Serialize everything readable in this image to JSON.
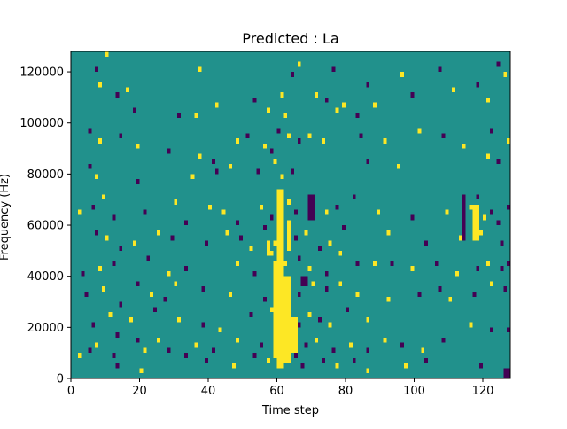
{
  "chart_data": {
    "type": "heatmap",
    "title": "Predicted : La",
    "xlabel": "Time step",
    "ylabel": "Frequency (Hz)",
    "xlim": [
      0,
      128
    ],
    "ylim": [
      0,
      128000
    ],
    "x_ticks": [
      0,
      20,
      40,
      60,
      80,
      100,
      120
    ],
    "y_ticks": [
      0,
      20000,
      40000,
      60000,
      80000,
      100000,
      120000
    ],
    "x_tick_labels": [
      "0",
      "20",
      "40",
      "60",
      "80",
      "100",
      "120"
    ],
    "y_tick_labels": [
      "0",
      "20000",
      "40000",
      "60000",
      "80000",
      "100000",
      "120000"
    ],
    "grid": false,
    "levels": {
      "-1": "#440154",
      "0": "#21918c",
      "1": "#fde725"
    },
    "background_level": 0,
    "column_width": 1,
    "row_height": 2000,
    "cells": [
      {
        "x": 10,
        "y": 126000,
        "v": 1
      },
      {
        "x": 7,
        "y": 120000,
        "v": -1
      },
      {
        "x": 8,
        "y": 114000,
        "v": 1
      },
      {
        "x": 37,
        "y": 120000,
        "v": 1
      },
      {
        "x": 64,
        "y": 118000,
        "v": -1
      },
      {
        "x": 66,
        "y": 122000,
        "v": 1
      },
      {
        "x": 76,
        "y": 120000,
        "v": -1
      },
      {
        "x": 86,
        "y": 114000,
        "v": -1
      },
      {
        "x": 96,
        "y": 118000,
        "v": 1
      },
      {
        "x": 107,
        "y": 120000,
        "v": -1
      },
      {
        "x": 124,
        "y": 122000,
        "v": -1
      },
      {
        "x": 126,
        "y": 118000,
        "v": 1
      },
      {
        "x": 13,
        "y": 110000,
        "v": -1
      },
      {
        "x": 16,
        "y": 112000,
        "v": 1
      },
      {
        "x": 18,
        "y": 104000,
        "v": -1
      },
      {
        "x": 31,
        "y": 102000,
        "v": -1
      },
      {
        "x": 36,
        "y": 102000,
        "v": 1
      },
      {
        "x": 42,
        "y": 106000,
        "v": 1
      },
      {
        "x": 53,
        "y": 108000,
        "v": -1
      },
      {
        "x": 57,
        "y": 104000,
        "v": 1
      },
      {
        "x": 61,
        "y": 110000,
        "v": 1
      },
      {
        "x": 62,
        "y": 102000,
        "v": 1
      },
      {
        "x": 71,
        "y": 110000,
        "v": 1
      },
      {
        "x": 74,
        "y": 108000,
        "v": -1
      },
      {
        "x": 77,
        "y": 104000,
        "v": 1
      },
      {
        "x": 79,
        "y": 106000,
        "v": 1
      },
      {
        "x": 83,
        "y": 102000,
        "v": -1
      },
      {
        "x": 88,
        "y": 106000,
        "v": 1
      },
      {
        "x": 99,
        "y": 110000,
        "v": -1
      },
      {
        "x": 111,
        "y": 112000,
        "v": 1
      },
      {
        "x": 118,
        "y": 114000,
        "v": -1
      },
      {
        "x": 121,
        "y": 108000,
        "v": 1
      },
      {
        "x": 5,
        "y": 96000,
        "v": -1
      },
      {
        "x": 8,
        "y": 92000,
        "v": 1
      },
      {
        "x": 14,
        "y": 94000,
        "v": -1
      },
      {
        "x": 19,
        "y": 90000,
        "v": 1
      },
      {
        "x": 28,
        "y": 88000,
        "v": -1
      },
      {
        "x": 37,
        "y": 86000,
        "v": 1
      },
      {
        "x": 41,
        "y": 84000,
        "v": -1
      },
      {
        "x": 48,
        "y": 92000,
        "v": 1
      },
      {
        "x": 51,
        "y": 94000,
        "v": -1
      },
      {
        "x": 56,
        "y": 90000,
        "v": 1
      },
      {
        "x": 58,
        "y": 88000,
        "v": -1
      },
      {
        "x": 60,
        "y": 96000,
        "v": -1
      },
      {
        "x": 63,
        "y": 94000,
        "v": 1
      },
      {
        "x": 66,
        "y": 92000,
        "v": -1
      },
      {
        "x": 69,
        "y": 94000,
        "v": 1
      },
      {
        "x": 73,
        "y": 92000,
        "v": 1
      },
      {
        "x": 84,
        "y": 94000,
        "v": -1
      },
      {
        "x": 91,
        "y": 92000,
        "v": 1
      },
      {
        "x": 101,
        "y": 96000,
        "v": 1
      },
      {
        "x": 108,
        "y": 94000,
        "v": -1
      },
      {
        "x": 114,
        "y": 90000,
        "v": 1
      },
      {
        "x": 122,
        "y": 96000,
        "v": -1
      },
      {
        "x": 127,
        "y": 92000,
        "v": 1
      },
      {
        "x": 5,
        "y": 82000,
        "v": -1
      },
      {
        "x": 7,
        "y": 78000,
        "v": 1
      },
      {
        "x": 19,
        "y": 76000,
        "v": -1
      },
      {
        "x": 35,
        "y": 78000,
        "v": 1
      },
      {
        "x": 42,
        "y": 80000,
        "v": -1
      },
      {
        "x": 46,
        "y": 82000,
        "v": 1
      },
      {
        "x": 54,
        "y": 80000,
        "v": -1
      },
      {
        "x": 59,
        "y": 84000,
        "v": 1
      },
      {
        "x": 61,
        "y": 78000,
        "v": 1
      },
      {
        "x": 64,
        "y": 80000,
        "v": -1
      },
      {
        "x": 86,
        "y": 84000,
        "v": -1
      },
      {
        "x": 95,
        "y": 82000,
        "v": 1
      },
      {
        "x": 121,
        "y": 86000,
        "v": 1
      },
      {
        "x": 124,
        "y": 84000,
        "v": -1
      },
      {
        "x": 2,
        "y": 64000,
        "v": 1
      },
      {
        "x": 6,
        "y": 66000,
        "v": -1
      },
      {
        "x": 9,
        "y": 70000,
        "v": 1
      },
      {
        "x": 12,
        "y": 62000,
        "v": -1
      },
      {
        "x": 21,
        "y": 64000,
        "v": -1
      },
      {
        "x": 30,
        "y": 68000,
        "v": 1
      },
      {
        "x": 33,
        "y": 60000,
        "v": -1
      },
      {
        "x": 40,
        "y": 66000,
        "v": 1
      },
      {
        "x": 44,
        "y": 64000,
        "v": 1
      },
      {
        "x": 48,
        "y": 60000,
        "v": -1
      },
      {
        "x": 55,
        "y": 66000,
        "v": 1
      },
      {
        "x": 58,
        "y": 62000,
        "v": -1
      },
      {
        "x": 61,
        "y": 70000,
        "v": 1
      },
      {
        "x": 63,
        "y": 68000,
        "v": 1
      },
      {
        "x": 65,
        "y": 64000,
        "v": -1
      },
      {
        "x": 70,
        "y": 68000,
        "v": -1
      },
      {
        "x": 74,
        "y": 64000,
        "v": 1
      },
      {
        "x": 77,
        "y": 66000,
        "v": -1
      },
      {
        "x": 82,
        "y": 70000,
        "v": -1
      },
      {
        "x": 89,
        "y": 64000,
        "v": 1
      },
      {
        "x": 99,
        "y": 62000,
        "v": -1
      },
      {
        "x": 109,
        "y": 64000,
        "v": 1
      },
      {
        "x": 116,
        "y": 66000,
        "v": 1
      },
      {
        "x": 118,
        "y": 70000,
        "v": -1
      },
      {
        "x": 120,
        "y": 62000,
        "v": 1
      },
      {
        "x": 122,
        "y": 64000,
        "v": -1
      },
      {
        "x": 124,
        "y": 60000,
        "v": -1
      },
      {
        "x": 127,
        "y": 66000,
        "v": -1
      },
      {
        "x": 7,
        "y": 56000,
        "v": -1
      },
      {
        "x": 10,
        "y": 54000,
        "v": 1
      },
      {
        "x": 14,
        "y": 50000,
        "v": -1
      },
      {
        "x": 18,
        "y": 52000,
        "v": 1
      },
      {
        "x": 25,
        "y": 56000,
        "v": 1
      },
      {
        "x": 29,
        "y": 54000,
        "v": -1
      },
      {
        "x": 39,
        "y": 52000,
        "v": -1
      },
      {
        "x": 45,
        "y": 56000,
        "v": 1
      },
      {
        "x": 49,
        "y": 54000,
        "v": -1
      },
      {
        "x": 52,
        "y": 50000,
        "v": 1
      },
      {
        "x": 56,
        "y": 58000,
        "v": -1
      },
      {
        "x": 59,
        "y": 52000,
        "v": 1
      },
      {
        "x": 65,
        "y": 54000,
        "v": -1
      },
      {
        "x": 68,
        "y": 56000,
        "v": 1
      },
      {
        "x": 72,
        "y": 50000,
        "v": -1
      },
      {
        "x": 75,
        "y": 52000,
        "v": 1
      },
      {
        "x": 79,
        "y": 58000,
        "v": -1
      },
      {
        "x": 92,
        "y": 56000,
        "v": 1
      },
      {
        "x": 103,
        "y": 52000,
        "v": -1
      },
      {
        "x": 113,
        "y": 54000,
        "v": 1
      },
      {
        "x": 119,
        "y": 56000,
        "v": 1
      },
      {
        "x": 125,
        "y": 52000,
        "v": -1
      },
      {
        "x": 3,
        "y": 40000,
        "v": -1
      },
      {
        "x": 8,
        "y": 42000,
        "v": 1
      },
      {
        "x": 12,
        "y": 44000,
        "v": -1
      },
      {
        "x": 22,
        "y": 46000,
        "v": -1
      },
      {
        "x": 28,
        "y": 40000,
        "v": 1
      },
      {
        "x": 33,
        "y": 42000,
        "v": -1
      },
      {
        "x": 48,
        "y": 44000,
        "v": 1
      },
      {
        "x": 53,
        "y": 40000,
        "v": -1
      },
      {
        "x": 58,
        "y": 48000,
        "v": 1
      },
      {
        "x": 62,
        "y": 44000,
        "v": 1
      },
      {
        "x": 66,
        "y": 46000,
        "v": -1
      },
      {
        "x": 69,
        "y": 42000,
        "v": 1
      },
      {
        "x": 74,
        "y": 40000,
        "v": -1
      },
      {
        "x": 78,
        "y": 48000,
        "v": 1
      },
      {
        "x": 83,
        "y": 44000,
        "v": -1
      },
      {
        "x": 88,
        "y": 44000,
        "v": 1
      },
      {
        "x": 93,
        "y": 44000,
        "v": -1
      },
      {
        "x": 99,
        "y": 42000,
        "v": 1
      },
      {
        "x": 106,
        "y": 44000,
        "v": -1
      },
      {
        "x": 112,
        "y": 40000,
        "v": 1
      },
      {
        "x": 118,
        "y": 42000,
        "v": -1
      },
      {
        "x": 121,
        "y": 44000,
        "v": 1
      },
      {
        "x": 125,
        "y": 42000,
        "v": -1
      },
      {
        "x": 127,
        "y": 44000,
        "v": -1
      },
      {
        "x": 4,
        "y": 32000,
        "v": -1
      },
      {
        "x": 9,
        "y": 34000,
        "v": 1
      },
      {
        "x": 14,
        "y": 28000,
        "v": -1
      },
      {
        "x": 19,
        "y": 36000,
        "v": -1
      },
      {
        "x": 23,
        "y": 32000,
        "v": 1
      },
      {
        "x": 27,
        "y": 30000,
        "v": -1
      },
      {
        "x": 30,
        "y": 36000,
        "v": 1
      },
      {
        "x": 38,
        "y": 34000,
        "v": -1
      },
      {
        "x": 46,
        "y": 32000,
        "v": 1
      },
      {
        "x": 56,
        "y": 30000,
        "v": -1
      },
      {
        "x": 66,
        "y": 32000,
        "v": -1
      },
      {
        "x": 70,
        "y": 36000,
        "v": 1
      },
      {
        "x": 74,
        "y": 34000,
        "v": -1
      },
      {
        "x": 78,
        "y": 36000,
        "v": 1
      },
      {
        "x": 83,
        "y": 32000,
        "v": 1
      },
      {
        "x": 92,
        "y": 30000,
        "v": 1
      },
      {
        "x": 101,
        "y": 32000,
        "v": -1
      },
      {
        "x": 107,
        "y": 34000,
        "v": -1
      },
      {
        "x": 110,
        "y": 30000,
        "v": 1
      },
      {
        "x": 117,
        "y": 32000,
        "v": -1
      },
      {
        "x": 122,
        "y": 36000,
        "v": 1
      },
      {
        "x": 126,
        "y": 34000,
        "v": -1
      },
      {
        "x": 6,
        "y": 20000,
        "v": -1
      },
      {
        "x": 11,
        "y": 24000,
        "v": 1
      },
      {
        "x": 13,
        "y": 16000,
        "v": -1
      },
      {
        "x": 17,
        "y": 22000,
        "v": 1
      },
      {
        "x": 24,
        "y": 26000,
        "v": -1
      },
      {
        "x": 31,
        "y": 22000,
        "v": 1
      },
      {
        "x": 38,
        "y": 20000,
        "v": -1
      },
      {
        "x": 43,
        "y": 18000,
        "v": 1
      },
      {
        "x": 52,
        "y": 24000,
        "v": -1
      },
      {
        "x": 58,
        "y": 26000,
        "v": 1
      },
      {
        "x": 66,
        "y": 20000,
        "v": -1
      },
      {
        "x": 69,
        "y": 24000,
        "v": 1
      },
      {
        "x": 72,
        "y": 22000,
        "v": -1
      },
      {
        "x": 75,
        "y": 20000,
        "v": 1
      },
      {
        "x": 80,
        "y": 26000,
        "v": -1
      },
      {
        "x": 86,
        "y": 22000,
        "v": 1
      },
      {
        "x": 116,
        "y": 20000,
        "v": 1
      },
      {
        "x": 122,
        "y": 18000,
        "v": -1
      },
      {
        "x": 127,
        "y": 18000,
        "v": -1
      },
      {
        "x": 5,
        "y": 10000,
        "v": -1
      },
      {
        "x": 7,
        "y": 12000,
        "v": 1
      },
      {
        "x": 12,
        "y": 8000,
        "v": -1
      },
      {
        "x": 19,
        "y": 14000,
        "v": -1
      },
      {
        "x": 21,
        "y": 10000,
        "v": 1
      },
      {
        "x": 25,
        "y": 14000,
        "v": 1
      },
      {
        "x": 28,
        "y": 10000,
        "v": -1
      },
      {
        "x": 33,
        "y": 8000,
        "v": -1
      },
      {
        "x": 36,
        "y": 12000,
        "v": 1
      },
      {
        "x": 41,
        "y": 10000,
        "v": -1
      },
      {
        "x": 48,
        "y": 14000,
        "v": 1
      },
      {
        "x": 55,
        "y": 12000,
        "v": -1
      },
      {
        "x": 59,
        "y": 10000,
        "v": 1
      },
      {
        "x": 65,
        "y": 8000,
        "v": -1
      },
      {
        "x": 68,
        "y": 12000,
        "v": -1
      },
      {
        "x": 71,
        "y": 14000,
        "v": 1
      },
      {
        "x": 76,
        "y": 10000,
        "v": -1
      },
      {
        "x": 81,
        "y": 12000,
        "v": 1
      },
      {
        "x": 86,
        "y": 10000,
        "v": -1
      },
      {
        "x": 91,
        "y": 14000,
        "v": 1
      },
      {
        "x": 96,
        "y": 12000,
        "v": -1
      },
      {
        "x": 102,
        "y": 10000,
        "v": 1
      },
      {
        "x": 108,
        "y": 14000,
        "v": -1
      },
      {
        "x": 2,
        "y": 8000,
        "v": 1
      },
      {
        "x": 13,
        "y": 4000,
        "v": -1
      },
      {
        "x": 20,
        "y": 2000,
        "v": 1
      },
      {
        "x": 39,
        "y": 6000,
        "v": -1
      },
      {
        "x": 47,
        "y": 4000,
        "v": 1
      },
      {
        "x": 53,
        "y": 8000,
        "v": -1
      },
      {
        "x": 57,
        "y": 6000,
        "v": 1
      },
      {
        "x": 67,
        "y": 4000,
        "v": -1
      },
      {
        "x": 73,
        "y": 6000,
        "v": -1
      },
      {
        "x": 77,
        "y": 4000,
        "v": 1
      },
      {
        "x": 82,
        "y": 6000,
        "v": -1
      },
      {
        "x": 86,
        "y": 2000,
        "v": 1
      },
      {
        "x": 97,
        "y": 4000,
        "v": 1
      },
      {
        "x": 103,
        "y": 6000,
        "v": -1
      },
      {
        "x": 119,
        "y": 4000,
        "v": -1
      },
      {
        "x": 126,
        "y": 0,
        "v": -1
      },
      {
        "x": 127,
        "y": 0,
        "v": -1
      },
      {
        "x": 126,
        "y": 2000,
        "v": -1
      },
      {
        "x": 127,
        "y": 2000,
        "v": -1
      }
    ],
    "blocks": [
      {
        "x0": 60,
        "x1": 62,
        "y0": 4000,
        "y1": 74000,
        "v": 1
      },
      {
        "x0": 59,
        "x1": 61,
        "y0": 8000,
        "y1": 46000,
        "v": 1
      },
      {
        "x0": 62,
        "x1": 64,
        "y0": 6000,
        "y1": 40000,
        "v": 1
      },
      {
        "x0": 63,
        "x1": 64,
        "y0": 50000,
        "y1": 62000,
        "v": 1
      },
      {
        "x0": 64,
        "x1": 66,
        "y0": 10000,
        "y1": 24000,
        "v": 1
      },
      {
        "x0": 57,
        "x1": 58,
        "y0": 48000,
        "y1": 54000,
        "v": 1
      },
      {
        "x0": 69,
        "x1": 71,
        "y0": 62000,
        "y1": 72000,
        "v": -1
      },
      {
        "x0": 67,
        "x1": 69,
        "y0": 36000,
        "y1": 40000,
        "v": -1
      },
      {
        "x0": 117,
        "x1": 119,
        "y0": 54000,
        "y1": 68000,
        "v": 1
      },
      {
        "x0": 114,
        "x1": 115,
        "y0": 54000,
        "y1": 72000,
        "v": -1
      }
    ]
  }
}
